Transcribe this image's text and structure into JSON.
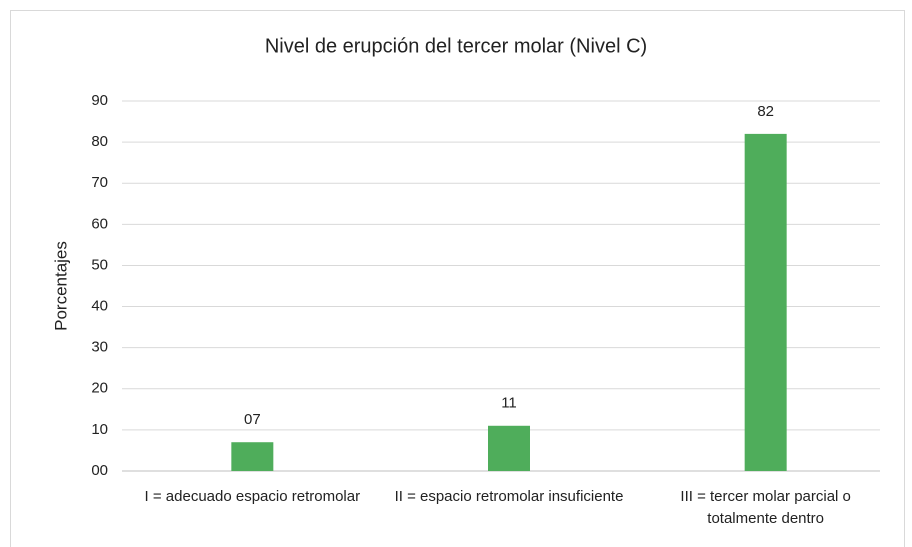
{
  "chart_data": {
    "type": "bar",
    "title": "Nivel de erupción del tercer molar (Nivel C)",
    "y_label": "Porcentajes",
    "categories": [
      "I = adecuado espacio retromolar",
      "II = espacio retromolar insuficiente",
      "III = tercer molar parcial o totalmente dentro"
    ],
    "values": [
      7,
      11,
      82
    ],
    "value_labels": [
      "07",
      "11",
      "82"
    ],
    "color": "#4fad5b",
    "ylim": [
      0,
      90
    ],
    "yticks": [
      {
        "value": 0,
        "label": "00"
      },
      10,
      20,
      30,
      40,
      50,
      60,
      70,
      80,
      90
    ],
    "grid": true
  }
}
